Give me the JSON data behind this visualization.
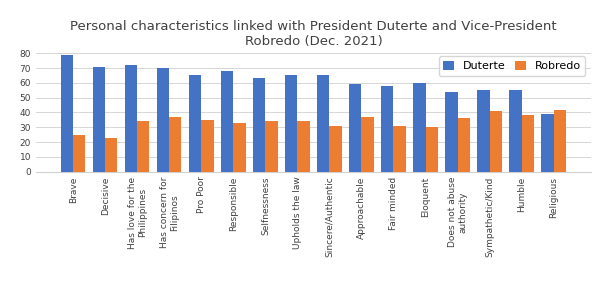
{
  "title": "Personal characteristics linked with President Duterte and Vice-President\nRobredo (Dec. 2021)",
  "categories": [
    "Brave",
    "Decisive",
    "Has love for the\nPhilippines",
    "Has concern for\nFilipinos",
    "Pro Poor",
    "Responsible",
    "Selfnessness",
    "Upholds the law",
    "Sincere/Authentic",
    "Approachable",
    "Fair minded",
    "Eloquent",
    "Does not abuse\nauthority",
    "Sympathetic/Kind",
    "Humble",
    "Religious"
  ],
  "duterte": [
    79,
    71,
    72,
    70,
    65,
    68,
    63,
    65,
    65,
    59,
    58,
    60,
    54,
    55,
    55,
    39
  ],
  "robredo": [
    25,
    23,
    34,
    37,
    35,
    33,
    34,
    34,
    31,
    37,
    31,
    30,
    36,
    41,
    38,
    42
  ],
  "duterte_color": "#4472C4",
  "robredo_color": "#ED7D31",
  "duterte_label": "Duterte",
  "robredo_label": "Robredo",
  "ylim": [
    0,
    80
  ],
  "yticks": [
    0,
    10,
    20,
    30,
    40,
    50,
    60,
    70,
    80
  ],
  "background_color": "#ffffff",
  "title_fontsize": 9.5,
  "tick_fontsize": 6.5,
  "legend_fontsize": 8,
  "bar_width": 0.38
}
